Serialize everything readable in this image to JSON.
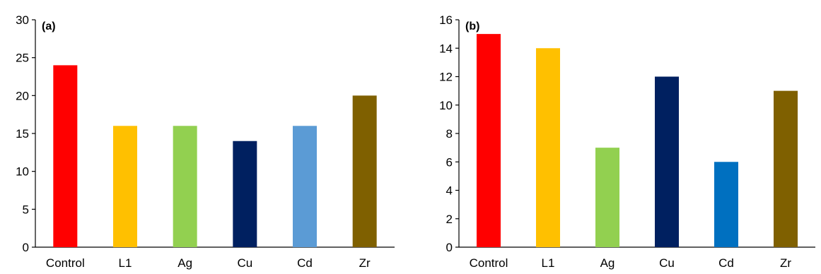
{
  "chart_data": [
    {
      "type": "bar",
      "panel_label": "(a)",
      "categories": [
        "Control",
        "L1",
        "Ag",
        "Cu",
        "Cd",
        "Zr"
      ],
      "values": [
        24,
        16,
        16,
        14,
        16,
        20
      ],
      "colors": [
        "#ff0000",
        "#ffc000",
        "#92d050",
        "#002060",
        "#5b9bd5",
        "#7f6000"
      ],
      "ylim": [
        0,
        30
      ],
      "yticks": [
        0,
        5,
        10,
        15,
        20,
        25,
        30
      ],
      "grid": false,
      "title": "",
      "xlabel": "",
      "ylabel": ""
    },
    {
      "type": "bar",
      "panel_label": "(b)",
      "categories": [
        "Control",
        "L1",
        "Ag",
        "Cu",
        "Cd",
        "Zr"
      ],
      "values": [
        15,
        14,
        7,
        12,
        6,
        11
      ],
      "colors": [
        "#ff0000",
        "#ffc000",
        "#92d050",
        "#002060",
        "#0070c0",
        "#7f6000"
      ],
      "ylim": [
        0,
        16
      ],
      "yticks": [
        0,
        2,
        4,
        6,
        8,
        10,
        12,
        14,
        16
      ],
      "grid": false,
      "title": "",
      "xlabel": "",
      "ylabel": ""
    }
  ]
}
